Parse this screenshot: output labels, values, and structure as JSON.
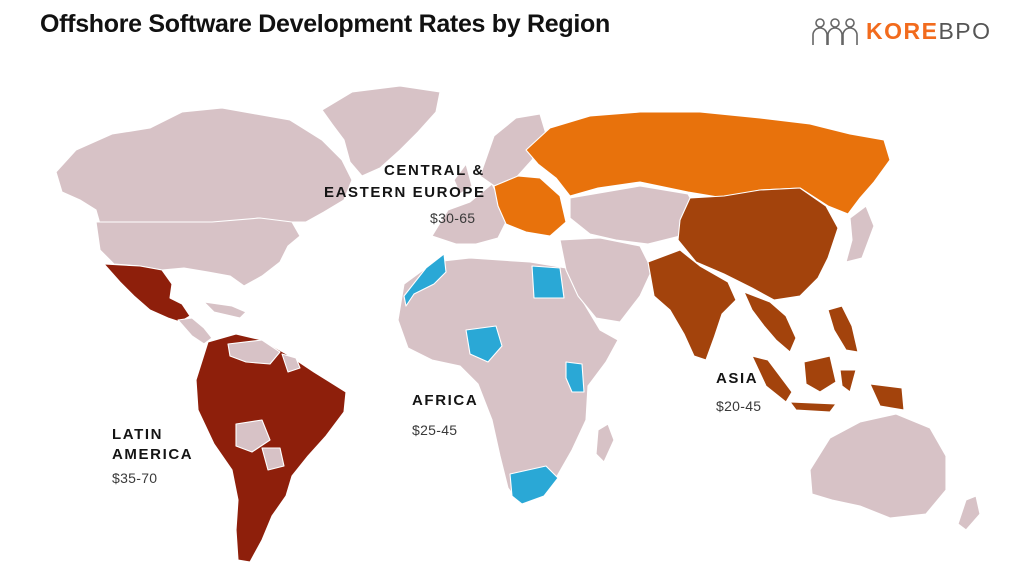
{
  "title": "Offshore Software Development Rates by Region",
  "logo": {
    "icon": "people-icon",
    "word_strong": "KORE",
    "word_light": "BPO",
    "accent": "#f26b1d"
  },
  "colors": {
    "land": "#d7c2c6",
    "latin_america": "#8e1f0b",
    "asia": "#a3430c",
    "europe": "#e8720c",
    "africa": "#2aa8d6",
    "border": "#ffffff"
  },
  "regions": {
    "europe": {
      "line1": "CENTRAL &",
      "line2": "EASTERN EUROPE",
      "rate": "$30-65"
    },
    "africa": {
      "line1": "AFRICA",
      "rate": "$25-45"
    },
    "asia": {
      "line1": "ASIA",
      "rate": "$20-45"
    },
    "latin_america": {
      "line1": "LATIN",
      "line2": "AMERICA",
      "rate": "$35-70"
    }
  }
}
